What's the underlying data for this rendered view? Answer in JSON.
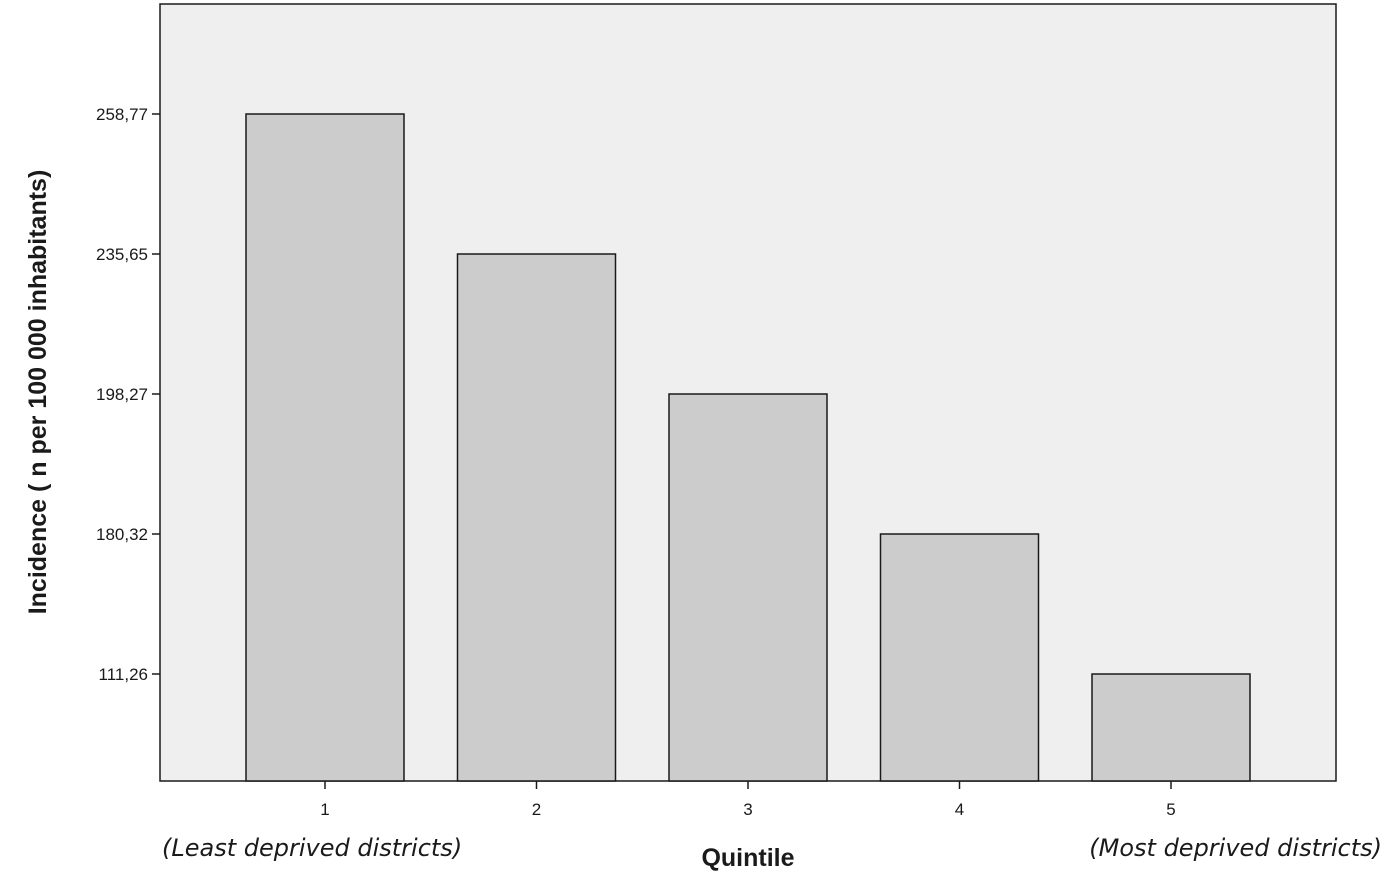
{
  "chart_data": {
    "type": "bar",
    "categories": [
      "1",
      "2",
      "3",
      "4",
      "5"
    ],
    "values": [
      258.77,
      235.65,
      198.27,
      180.32,
      111.26
    ],
    "ytick_labels": [
      "258,77",
      "235,65",
      "198,27",
      "180,32",
      "111,26"
    ],
    "xlabel": "Quintile",
    "ylabel": "Incidence ( n per 100 000 inhabitants)",
    "annotations": {
      "left": "(Least deprived districts)",
      "right": "(Most deprived districts)"
    },
    "grid": false,
    "colors": {
      "plot_background": "#efefef",
      "bar_fill": "#cccccc",
      "bar_stroke": "#1a1a1a",
      "axis": "#1a1a1a"
    }
  }
}
